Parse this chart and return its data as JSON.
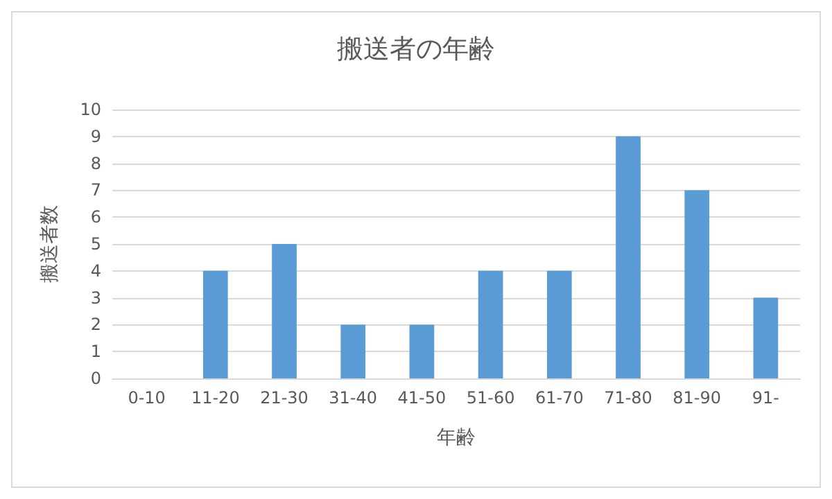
{
  "chart_data": {
    "type": "bar",
    "title": "搬送者の年齢",
    "xlabel": "年齢",
    "ylabel": "搬送者数",
    "categories": [
      "0-10",
      "11-20",
      "21-30",
      "31-40",
      "41-50",
      "51-60",
      "61-70",
      "71-80",
      "81-90",
      "91-"
    ],
    "values": [
      0,
      4,
      5,
      2,
      2,
      4,
      4,
      9,
      7,
      3
    ],
    "color": "#5b9bd5",
    "ylim": [
      0,
      10
    ],
    "yticks": [
      0,
      1,
      2,
      3,
      4,
      5,
      6,
      7,
      8,
      9,
      10
    ],
    "grid": "y"
  }
}
